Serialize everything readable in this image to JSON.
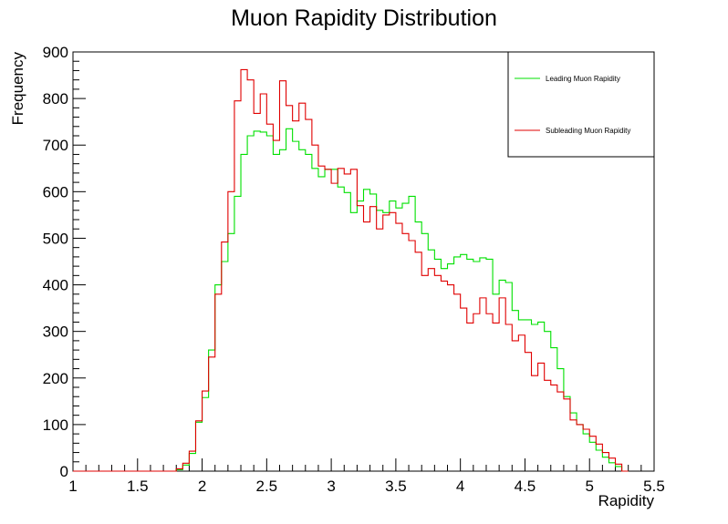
{
  "chart_data": {
    "type": "histogram",
    "title": "Muon Rapidity Distribution",
    "xlabel": "Rapidity",
    "ylabel": "Frequency",
    "xlim": [
      1,
      5.5
    ],
    "ylim": [
      0,
      900
    ],
    "bin_width": 0.05,
    "x_ticks": [
      "1",
      "1.5",
      "2",
      "2.5",
      "3",
      "3.5",
      "4",
      "4.5",
      "5",
      "5.5"
    ],
    "y_ticks": [
      "0",
      "100",
      "200",
      "300",
      "400",
      "500",
      "600",
      "700",
      "800",
      "900"
    ],
    "legend": {
      "position": "top-right"
    },
    "series": [
      {
        "name": "Leading Muon Rapidity",
        "color": "#00e000",
        "values": [
          0,
          0,
          0,
          0,
          0,
          0,
          0,
          0,
          0,
          0,
          0,
          0,
          0,
          0,
          0,
          0,
          3,
          13,
          38,
          105,
          158,
          260,
          400,
          450,
          510,
          590,
          680,
          720,
          730,
          728,
          720,
          680,
          690,
          735,
          708,
          690,
          680,
          650,
          632,
          648,
          648,
          610,
          598,
          555,
          580,
          605,
          595,
          560,
          555,
          580,
          565,
          575,
          590,
          535,
          510,
          475,
          455,
          435,
          445,
          460,
          465,
          455,
          450,
          458,
          455,
          380,
          410,
          405,
          345,
          325,
          325,
          315,
          320,
          300,
          265,
          220,
          160,
          125,
          100,
          80,
          62,
          45,
          30,
          18,
          10,
          0
        ]
      },
      {
        "name": "Subleading Muon Rapidity",
        "color": "#e00000",
        "values": [
          0,
          0,
          0,
          0,
          0,
          0,
          0,
          0,
          0,
          0,
          0,
          0,
          0,
          0,
          0,
          0,
          5,
          17,
          43,
          108,
          172,
          245,
          380,
          492,
          600,
          795,
          862,
          840,
          768,
          810,
          745,
          710,
          838,
          785,
          752,
          790,
          755,
          700,
          655,
          648,
          618,
          650,
          638,
          648,
          570,
          535,
          568,
          520,
          550,
          555,
          532,
          510,
          495,
          470,
          420,
          435,
          420,
          408,
          400,
          380,
          350,
          318,
          338,
          372,
          338,
          318,
          372,
          315,
          280,
          292,
          255,
          205,
          232,
          195,
          185,
          170,
          155,
          110,
          100,
          90,
          75,
          58,
          40,
          28,
          15,
          0
        ]
      }
    ]
  }
}
